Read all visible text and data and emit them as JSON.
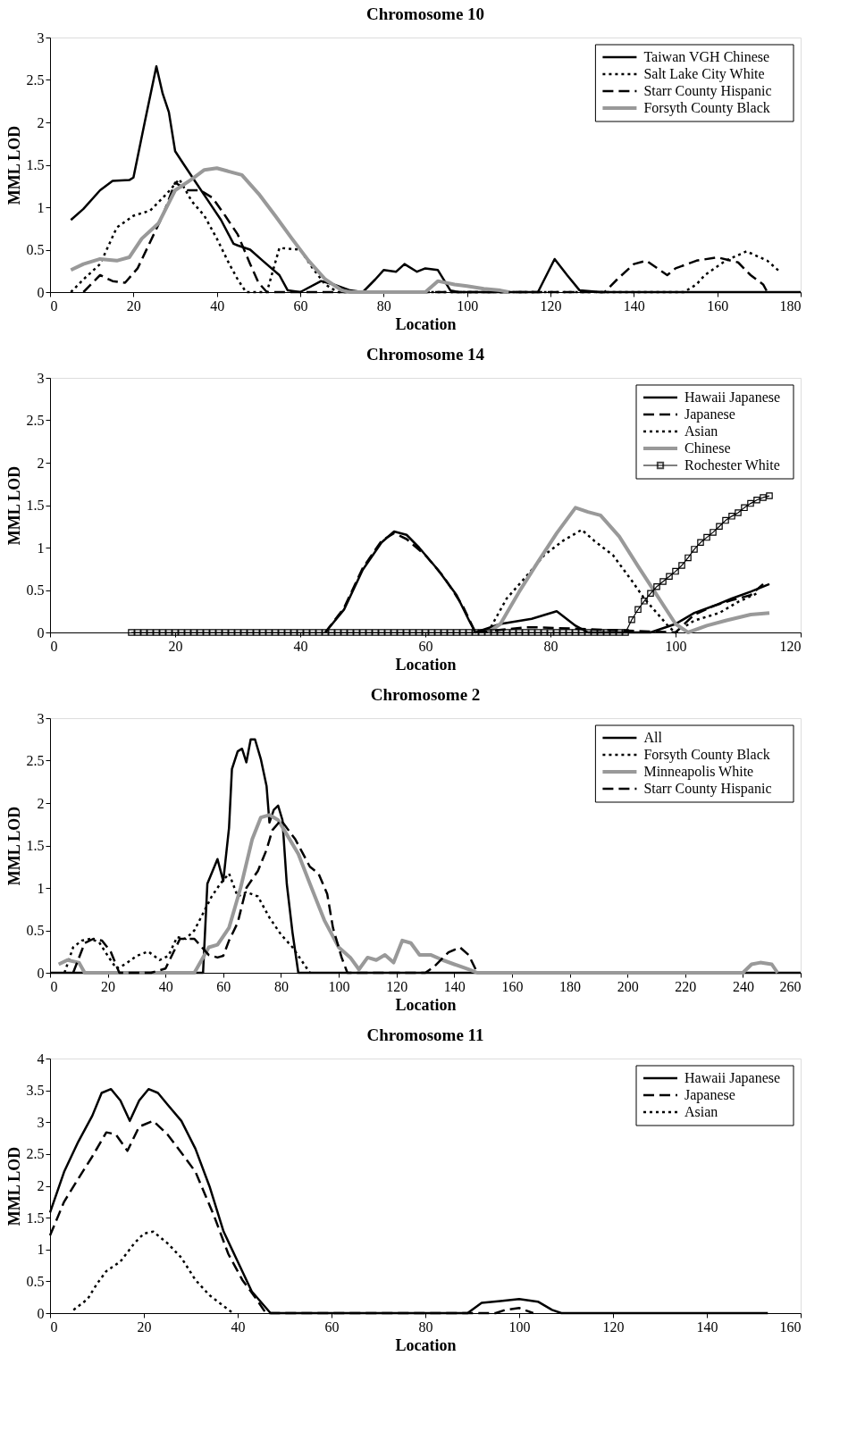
{
  "chart_data": [
    {
      "type": "line",
      "title": "Chromosome 10",
      "xlabel": "Location",
      "ylabel": "MML LOD",
      "xlim": [
        0,
        180
      ],
      "xticks": [
        0,
        20,
        40,
        60,
        80,
        100,
        120,
        140,
        160,
        180
      ],
      "ylim": [
        0,
        3
      ],
      "yticks": [
        0,
        0.5,
        1,
        1.5,
        2,
        2.5,
        3
      ],
      "legend": "top right",
      "grid": false,
      "series": [
        {
          "name": "Taiwan VGH Chinese",
          "color": "#000000",
          "line_style": "solid",
          "marker": "none",
          "x": [
            5,
            8,
            12,
            15,
            19,
            20,
            22.7,
            25.5,
            27,
            28.5,
            30,
            32,
            35,
            38,
            41,
            44,
            45,
            48,
            51,
            55,
            57,
            60,
            65,
            68,
            72,
            75,
            78,
            80,
            83,
            85,
            88,
            90,
            93,
            96,
            98,
            117,
            121,
            124,
            127,
            132,
            180
          ],
          "values": [
            0.85,
            0.98,
            1.2,
            1.31,
            1.32,
            1.35,
            2.0,
            2.66,
            2.34,
            2.12,
            1.66,
            1.51,
            1.29,
            1.07,
            0.85,
            0.57,
            0.55,
            0.5,
            0.37,
            0.2,
            0.02,
            0,
            0.13,
            0.09,
            0.02,
            0,
            0.15,
            0.26,
            0.24,
            0.33,
            0.24,
            0.28,
            0.26,
            0.02,
            0,
            0,
            0.39,
            0.2,
            0.02,
            0,
            0
          ]
        },
        {
          "name": "Salt Lake City White",
          "color": "#000000",
          "line_style": "dotted",
          "marker": "none",
          "x": [
            5,
            8,
            12,
            16,
            20,
            24,
            28,
            31,
            34,
            37,
            40,
            43,
            45,
            47,
            52,
            55,
            60,
            63,
            66,
            69,
            152,
            155,
            157,
            162,
            167,
            172,
            175
          ],
          "values": [
            0,
            0.15,
            0.33,
            0.76,
            0.9,
            0.96,
            1.16,
            1.33,
            1.07,
            0.9,
            0.63,
            0.33,
            0.15,
            0,
            0,
            0.52,
            0.5,
            0.28,
            0.09,
            0,
            0,
            0.09,
            0.2,
            0.37,
            0.48,
            0.37,
            0.24
          ]
        },
        {
          "name": "Starr County Hispanic",
          "color": "#000000",
          "line_style": "dashed",
          "marker": "none",
          "x": [
            8,
            12,
            15,
            18,
            21,
            24,
            27,
            30,
            33,
            36,
            39,
            42,
            45,
            48,
            50,
            52,
            133,
            136,
            140,
            143,
            148,
            150,
            155,
            160,
            165,
            168,
            171,
            172
          ],
          "values": [
            0,
            0.2,
            0.13,
            0.11,
            0.28,
            0.59,
            0.9,
            1.29,
            1.2,
            1.2,
            1.11,
            0.9,
            0.68,
            0.33,
            0.11,
            0,
            0,
            0.15,
            0.33,
            0.37,
            0.2,
            0.28,
            0.37,
            0.41,
            0.35,
            0.2,
            0.09,
            0
          ]
        },
        {
          "name": "Forsyth County Black",
          "color": "#999999",
          "line_style": "solid",
          "marker": "none",
          "x": [
            5,
            8,
            12,
            16,
            19,
            22,
            26,
            30,
            34,
            37,
            40,
            43,
            46,
            50,
            54,
            58,
            62,
            66,
            70,
            72,
            90,
            93,
            97,
            100,
            104,
            108,
            110
          ],
          "values": [
            0.26,
            0.33,
            0.39,
            0.37,
            0.41,
            0.63,
            0.81,
            1.2,
            1.33,
            1.44,
            1.46,
            1.42,
            1.38,
            1.16,
            0.9,
            0.63,
            0.37,
            0.15,
            0.02,
            0,
            0,
            0.13,
            0.09,
            0.07,
            0.04,
            0.02,
            0
          ]
        }
      ]
    },
    {
      "type": "line",
      "title": "Chromosome 14",
      "xlabel": "Location",
      "ylabel": "MML LOD",
      "xlim": [
        0,
        120
      ],
      "xticks": [
        0,
        20,
        40,
        60,
        80,
        100,
        120
      ],
      "ylim": [
        0,
        3
      ],
      "yticks": [
        0,
        0.5,
        1,
        1.5,
        2,
        2.5,
        3
      ],
      "legend": "top right",
      "grid": false,
      "series": [
        {
          "name": "Hawaii Japanese",
          "color": "#000000",
          "line_style": "solid",
          "marker": "none",
          "x": [
            44,
            47,
            50,
            53,
            55,
            57,
            59,
            62,
            65,
            67,
            68,
            72,
            77,
            81,
            84,
            86,
            96,
            100,
            103,
            106,
            109,
            112,
            115
          ],
          "values": [
            0,
            0.27,
            0.74,
            1.06,
            1.19,
            1.15,
            1.0,
            0.74,
            0.44,
            0.14,
            0,
            0.1,
            0.16,
            0.25,
            0.08,
            0,
            0,
            0.1,
            0.23,
            0.31,
            0.4,
            0.48,
            0.57
          ]
        },
        {
          "name": "Japanese",
          "color": "#000000",
          "line_style": "dashed",
          "marker": "none",
          "x": [
            44,
            47,
            50,
            53,
            55,
            57,
            60,
            63,
            66,
            68,
            76,
            78,
            100,
            103,
            106,
            109,
            112,
            114
          ],
          "values": [
            0,
            0.29,
            0.76,
            1.08,
            1.17,
            1.1,
            0.91,
            0.65,
            0.31,
            0,
            0.06,
            0.06,
            0,
            0.21,
            0.31,
            0.38,
            0.44,
            0.57
          ]
        },
        {
          "name": "Asian",
          "color": "#000000",
          "line_style": "dotted",
          "marker": "none",
          "x": [
            70,
            73,
            76,
            79,
            82,
            85,
            87,
            90,
            93,
            95,
            97,
            99,
            100,
            103,
            107,
            110,
            113
          ],
          "values": [
            0,
            0.4,
            0.65,
            0.91,
            1.08,
            1.21,
            1.08,
            0.91,
            0.61,
            0.4,
            0.23,
            0.06,
            0,
            0.14,
            0.23,
            0.36,
            0.46
          ]
        },
        {
          "name": "Chinese",
          "color": "#999999",
          "line_style": "solid",
          "marker": "none",
          "x": [
            70,
            72,
            75,
            78,
            81,
            84,
            86,
            88,
            91,
            94,
            97,
            100,
            102,
            105,
            108,
            112,
            115
          ],
          "values": [
            0,
            0.1,
            0.48,
            0.83,
            1.17,
            1.47,
            1.42,
            1.38,
            1.13,
            0.78,
            0.44,
            0.1,
            0,
            0.08,
            0.14,
            0.21,
            0.23
          ]
        },
        {
          "name": "Rochester White",
          "color": "#000000",
          "line_style": "solid",
          "marker": "square",
          "x": [
            13,
            14,
            15,
            16,
            17,
            18,
            19,
            20,
            21,
            22,
            23,
            24,
            25,
            26,
            27,
            28,
            29,
            30,
            31,
            32,
            33,
            34,
            35,
            36,
            37,
            38,
            39,
            40,
            41,
            42,
            43,
            44,
            45,
            46,
            47,
            48,
            49,
            50,
            51,
            52,
            53,
            54,
            55,
            56,
            57,
            58,
            59,
            60,
            61,
            62,
            63,
            64,
            65,
            66,
            67,
            68,
            69,
            70,
            71,
            72,
            73,
            74,
            75,
            76,
            77,
            78,
            79,
            80,
            81,
            82,
            83,
            84,
            85,
            86,
            87,
            88,
            89,
            90,
            91,
            92,
            93,
            94,
            95,
            96,
            97,
            98,
            99,
            100,
            101,
            102,
            103,
            104,
            105,
            106,
            107,
            108,
            109,
            110,
            111,
            112,
            113,
            114,
            115
          ],
          "values": [
            0,
            0,
            0,
            0,
            0,
            0,
            0,
            0,
            0,
            0,
            0,
            0,
            0,
            0,
            0,
            0,
            0,
            0,
            0,
            0,
            0,
            0,
            0,
            0,
            0,
            0,
            0,
            0,
            0,
            0,
            0,
            0,
            0,
            0,
            0,
            0,
            0,
            0,
            0,
            0,
            0,
            0,
            0,
            0,
            0,
            0,
            0,
            0,
            0,
            0,
            0,
            0,
            0,
            0,
            0,
            0,
            0,
            0,
            0,
            0,
            0,
            0,
            0,
            0,
            0,
            0,
            0,
            0,
            0,
            0,
            0,
            0,
            0,
            0,
            0,
            0,
            0,
            0,
            0,
            0,
            0.15,
            0.27,
            0.37,
            0.46,
            0.54,
            0.6,
            0.66,
            0.72,
            0.79,
            0.88,
            0.98,
            1.06,
            1.12,
            1.18,
            1.25,
            1.32,
            1.37,
            1.41,
            1.47,
            1.52,
            1.56,
            1.59,
            1.61
          ]
        }
      ]
    },
    {
      "type": "line",
      "title": "Chromosome 2",
      "xlabel": "Location",
      "ylabel": "MML LOD",
      "xlim": [
        0,
        260
      ],
      "xticks": [
        0,
        20,
        40,
        60,
        80,
        100,
        120,
        140,
        160,
        180,
        200,
        220,
        240,
        260
      ],
      "ylim": [
        0,
        3
      ],
      "yticks": [
        0,
        0.5,
        1,
        1.5,
        2,
        2.5,
        3
      ],
      "legend": "top right",
      "grid": false,
      "series": [
        {
          "name": "All",
          "color": "#000000",
          "line_style": "solid",
          "marker": "none",
          "x": [
            0,
            53,
            54.5,
            58,
            60,
            62,
            63,
            65,
            66.5,
            68,
            69.5,
            71,
            73,
            75,
            76,
            77.5,
            79,
            80.5,
            82,
            84,
            86,
            260
          ],
          "values": [
            0,
            0,
            1.05,
            1.34,
            1.08,
            1.71,
            2.4,
            2.61,
            2.64,
            2.48,
            2.75,
            2.75,
            2.52,
            2.2,
            1.77,
            1.92,
            1.97,
            1.8,
            1.05,
            0.47,
            0,
            0
          ]
        },
        {
          "name": "Forsyth County Black",
          "color": "#000000",
          "line_style": "dotted",
          "marker": "none",
          "x": [
            5,
            8,
            11,
            14,
            17,
            20,
            23,
            26,
            30,
            34,
            38,
            41,
            44,
            47,
            50,
            53,
            56,
            59,
            62,
            65,
            68,
            72,
            76,
            80,
            84,
            88,
            90
          ],
          "values": [
            0,
            0.3,
            0.38,
            0.4,
            0.36,
            0.2,
            0.05,
            0.1,
            0.2,
            0.25,
            0.15,
            0.2,
            0.42,
            0.4,
            0.5,
            0.7,
            0.9,
            1.05,
            1.17,
            0.9,
            0.95,
            0.9,
            0.65,
            0.45,
            0.3,
            0.1,
            0
          ]
        },
        {
          "name": "Minneapolis White",
          "color": "#999999",
          "line_style": "solid",
          "marker": "none",
          "x": [
            3,
            6,
            10,
            12,
            50,
            55,
            58,
            62,
            66,
            70,
            73,
            76,
            79,
            82,
            86,
            90,
            95,
            100,
            104,
            107,
            110,
            113,
            116,
            119,
            122,
            125,
            128,
            132,
            136,
            140,
            145,
            148,
            240,
            243,
            246,
            250,
            252
          ],
          "values": [
            0.1,
            0.15,
            0.12,
            0,
            0,
            0.3,
            0.33,
            0.53,
            1.0,
            1.57,
            1.83,
            1.86,
            1.8,
            1.63,
            1.4,
            1.05,
            0.62,
            0.3,
            0.18,
            0.04,
            0.18,
            0.15,
            0.21,
            0.12,
            0.38,
            0.35,
            0.21,
            0.21,
            0.15,
            0.1,
            0.04,
            0,
            0,
            0.1,
            0.12,
            0.1,
            0
          ]
        },
        {
          "name": "Starr County Hispanic",
          "color": "#000000",
          "line_style": "dashed",
          "marker": "none",
          "x": [
            8,
            12,
            15,
            18,
            21,
            24,
            35,
            40,
            45,
            50,
            55,
            58,
            60,
            62,
            65,
            68,
            72,
            75,
            77,
            80,
            85,
            90,
            93,
            96,
            98,
            101,
            103,
            130,
            133,
            138,
            142,
            145,
            148
          ],
          "values": [
            0,
            0.35,
            0.4,
            0.38,
            0.25,
            0,
            0,
            0.05,
            0.4,
            0.4,
            0.21,
            0.18,
            0.2,
            0.38,
            0.59,
            1.0,
            1.2,
            1.45,
            1.68,
            1.8,
            1.57,
            1.25,
            1.17,
            0.93,
            0.53,
            0.18,
            0,
            0,
            0.07,
            0.24,
            0.3,
            0.21,
            0
          ]
        }
      ]
    },
    {
      "type": "line",
      "title": "Chromosome 11",
      "xlabel": "Location",
      "ylabel": "MML LOD",
      "xlim": [
        0,
        160
      ],
      "xticks": [
        0,
        20,
        40,
        60,
        80,
        100,
        120,
        140,
        160
      ],
      "ylim": [
        0,
        4
      ],
      "yticks": [
        0,
        0.5,
        1,
        1.5,
        2,
        2.5,
        3,
        3.5,
        4
      ],
      "legend": "top right",
      "grid": false,
      "series": [
        {
          "name": "Hawaii Japanese",
          "color": "#000000",
          "line_style": "solid",
          "marker": "none",
          "x": [
            0,
            3,
            6,
            9,
            11,
            13,
            15,
            17,
            19,
            21,
            23,
            25,
            28,
            31,
            34,
            37,
            40,
            43,
            47,
            89,
            92,
            96,
            100,
            104,
            107,
            109,
            153
          ],
          "values": [
            1.58,
            2.22,
            2.69,
            3.1,
            3.46,
            3.52,
            3.34,
            3.02,
            3.34,
            3.52,
            3.46,
            3.28,
            3.02,
            2.58,
            1.99,
            1.28,
            0.81,
            0.34,
            0,
            0,
            0.16,
            0.19,
            0.22,
            0.18,
            0.05,
            0,
            0
          ]
        },
        {
          "name": "Japanese",
          "color": "#000000",
          "line_style": "dashed",
          "marker": "none",
          "x": [
            0,
            3,
            6,
            9,
            12,
            14,
            16.5,
            19,
            22,
            25,
            28,
            31,
            35,
            38,
            41,
            44,
            46,
            95,
            97,
            100,
            103
          ],
          "values": [
            1.22,
            1.75,
            2.11,
            2.46,
            2.84,
            2.81,
            2.55,
            2.93,
            3.02,
            2.81,
            2.52,
            2.22,
            1.52,
            0.93,
            0.52,
            0.22,
            0,
            0,
            0.05,
            0.08,
            0
          ]
        },
        {
          "name": "Asian",
          "color": "#000000",
          "line_style": "dotted",
          "marker": "none",
          "x": [
            5,
            8,
            10,
            12,
            15,
            18,
            20,
            22,
            25,
            28,
            31,
            34,
            37,
            39
          ],
          "values": [
            0.05,
            0.22,
            0.46,
            0.66,
            0.81,
            1.1,
            1.25,
            1.28,
            1.1,
            0.87,
            0.52,
            0.28,
            0.11,
            0
          ]
        }
      ]
    }
  ]
}
